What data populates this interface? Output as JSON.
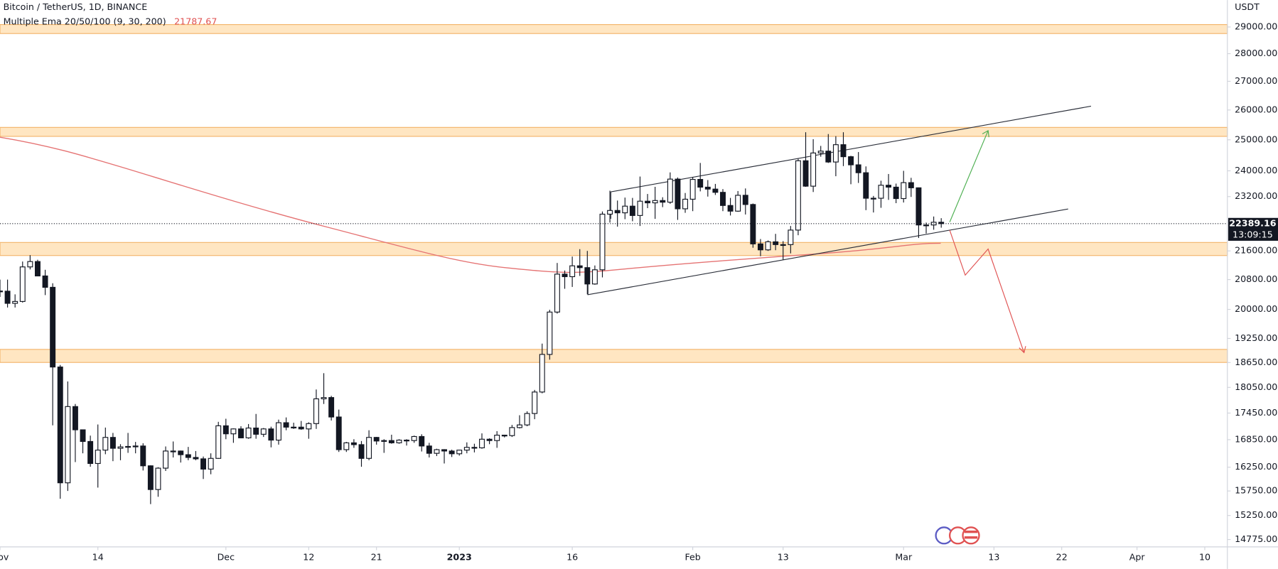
{
  "chart_data": {
    "type": "candlestick",
    "title": "Bitcoin / TetherUS, 1D, BINANCE",
    "indicator": {
      "name": "Multiple Ema 20/50/100 (9, 30, 200)",
      "value": 21787.67,
      "color": "#e05252"
    },
    "y_axis_unit": "USDT",
    "countdown": "13:09:15",
    "log_scale": true,
    "grid": false,
    "up_color": "#ffffff",
    "down_color": "#131722",
    "xlim": [
      "2022-11-01",
      "2023-04-13"
    ],
    "ylim": [
      14633,
      30045
    ],
    "xticks": [
      {
        "value": "2022-11-01",
        "label": "Nov"
      },
      {
        "value": "2022-11-14",
        "label": "14"
      },
      {
        "value": "2022-12-01",
        "label": "Dec"
      },
      {
        "value": "2022-12-12",
        "label": "12"
      },
      {
        "value": "2022-12-21",
        "label": "21"
      },
      {
        "value": "2023-01-01",
        "label": "2023"
      },
      {
        "value": "2023-01-16",
        "label": "16"
      },
      {
        "value": "2023-02-01",
        "label": "Feb"
      },
      {
        "value": "2023-02-13",
        "label": "13"
      },
      {
        "value": "2023-03-01",
        "label": "Mar"
      },
      {
        "value": "2023-03-13",
        "label": "13"
      },
      {
        "value": "2023-03-22",
        "label": "22"
      },
      {
        "value": "2023-04-01",
        "label": "Apr"
      },
      {
        "value": "2023-04-10",
        "label": "10"
      }
    ],
    "yticks": [
      {
        "value": 29000,
        "label": "29000.00"
      },
      {
        "value": 28000,
        "label": "28000.00"
      },
      {
        "value": 27000,
        "label": "27000.00"
      },
      {
        "value": 26000,
        "label": "26000.00"
      },
      {
        "value": 25000,
        "label": "25000.00"
      },
      {
        "value": 24000,
        "label": "24000.00"
      },
      {
        "value": 23200,
        "label": "23200.00"
      },
      {
        "value": 21600,
        "label": "21600.00"
      },
      {
        "value": 20800,
        "label": "20800.00"
      },
      {
        "value": 20000,
        "label": "20000.00"
      },
      {
        "value": 19250,
        "label": "19250.00"
      },
      {
        "value": 18650,
        "label": "18650.00"
      },
      {
        "value": 18050,
        "label": "18050.00"
      },
      {
        "value": 17450,
        "label": "17450.00"
      },
      {
        "value": 16850,
        "label": "16850.00"
      },
      {
        "value": 16250,
        "label": "16250.00"
      },
      {
        "value": 15750,
        "label": "15750.00"
      },
      {
        "value": 15250,
        "label": "15250.00"
      },
      {
        "value": 14775,
        "label": "14775.00"
      }
    ],
    "x": [
      "2022-11-01",
      "2022-11-02",
      "2022-11-03",
      "2022-11-04",
      "2022-11-05",
      "2022-11-06",
      "2022-11-07",
      "2022-11-08",
      "2022-11-09",
      "2022-11-10",
      "2022-11-11",
      "2022-11-12",
      "2022-11-13",
      "2022-11-14",
      "2022-11-15",
      "2022-11-16",
      "2022-11-17",
      "2022-11-18",
      "2022-11-19",
      "2022-11-20",
      "2022-11-21",
      "2022-11-22",
      "2022-11-23",
      "2022-11-24",
      "2022-11-25",
      "2022-11-26",
      "2022-11-27",
      "2022-11-28",
      "2022-11-29",
      "2022-11-30",
      "2022-12-01",
      "2022-12-02",
      "2022-12-03",
      "2022-12-04",
      "2022-12-05",
      "2022-12-06",
      "2022-12-07",
      "2022-12-08",
      "2022-12-09",
      "2022-12-10",
      "2022-12-11",
      "2022-12-12",
      "2022-12-13",
      "2022-12-14",
      "2022-12-15",
      "2022-12-16",
      "2022-12-17",
      "2022-12-18",
      "2022-12-19",
      "2022-12-20",
      "2022-12-21",
      "2022-12-22",
      "2022-12-23",
      "2022-12-24",
      "2022-12-25",
      "2022-12-26",
      "2022-12-27",
      "2022-12-28",
      "2022-12-29",
      "2022-12-30",
      "2022-12-31",
      "2023-01-01",
      "2023-01-02",
      "2023-01-03",
      "2023-01-04",
      "2023-01-05",
      "2023-01-06",
      "2023-01-07",
      "2023-01-08",
      "2023-01-09",
      "2023-01-10",
      "2023-01-11",
      "2023-01-12",
      "2023-01-13",
      "2023-01-14",
      "2023-01-15",
      "2023-01-16",
      "2023-01-17",
      "2023-01-18",
      "2023-01-19",
      "2023-01-20",
      "2023-01-21",
      "2023-01-22",
      "2023-01-23",
      "2023-01-24",
      "2023-01-25",
      "2023-01-26",
      "2023-01-27",
      "2023-01-28",
      "2023-01-29",
      "2023-01-30",
      "2023-01-31",
      "2023-02-01",
      "2023-02-02",
      "2023-02-03",
      "2023-02-04",
      "2023-02-05",
      "2023-02-06",
      "2023-02-07",
      "2023-02-08",
      "2023-02-09",
      "2023-02-10",
      "2023-02-11",
      "2023-02-12",
      "2023-02-13",
      "2023-02-14",
      "2023-02-15",
      "2023-02-16",
      "2023-02-17",
      "2023-02-18",
      "2023-02-19",
      "2023-02-20",
      "2023-02-21",
      "2023-02-22",
      "2023-02-23",
      "2023-02-24",
      "2023-02-25",
      "2023-02-26",
      "2023-02-27",
      "2023-02-28",
      "2023-03-01",
      "2023-03-02",
      "2023-03-03",
      "2023-03-04",
      "2023-03-05",
      "2023-03-06"
    ],
    "open": [
      20490,
      20485,
      20160,
      20210,
      21150,
      21300,
      20900,
      20590,
      18540,
      15920,
      17600,
      17070,
      16810,
      16330,
      16620,
      16900,
      16660,
      16690,
      16700,
      16710,
      16280,
      15780,
      16230,
      16600,
      16600,
      16520,
      16460,
      16430,
      16210,
      16440,
      17160,
      16980,
      17090,
      16890,
      17110,
      16970,
      17090,
      16840,
      17230,
      17130,
      17130,
      17090,
      17210,
      17780,
      17810,
      17360,
      16630,
      16780,
      16740,
      16440,
      16900,
      16820,
      16830,
      16780,
      16840,
      16830,
      16920,
      16710,
      16550,
      16630,
      16600,
      16540,
      16620,
      16680,
      16670,
      16860,
      16830,
      16950,
      16940,
      17120,
      17180,
      17440,
      17940,
      18850,
      19930,
      20950,
      20880,
      21180,
      21130,
      20680,
      21070,
      22670,
      22780,
      22710,
      22910,
      22630,
      23060,
      23010,
      23080,
      23030,
      23740,
      22830,
      23120,
      23730,
      23490,
      23430,
      23330,
      22930,
      22760,
      23240,
      22960,
      21800,
      21630,
      21860,
      21780,
      21780,
      22200,
      24320,
      23520,
      24570,
      24630,
      24280,
      24840,
      24450,
      24190,
      23940,
      23150,
      23150,
      23550,
      23490,
      23140,
      23630,
      23470,
      22350,
      22350,
      22430
    ],
    "high": [
      20800,
      20800,
      20400,
      21300,
      21480,
      21350,
      21070,
      20700,
      18590,
      18190,
      17660,
      17070,
      16940,
      17190,
      17120,
      17000,
      16750,
      17000,
      16800,
      16770,
      16290,
      16250,
      16700,
      16810,
      16610,
      16690,
      16600,
      16480,
      16550,
      17250,
      17320,
      17100,
      17150,
      17200,
      17430,
      17110,
      17140,
      17300,
      17350,
      17230,
      17270,
      17240,
      18000,
      18390,
      17850,
      17530,
      16800,
      16860,
      16820,
      17060,
      16910,
      16860,
      16960,
      16860,
      16860,
      16940,
      16970,
      16780,
      16650,
      16640,
      16630,
      16630,
      16790,
      16760,
      16990,
      16880,
      17040,
      16960,
      17180,
      17400,
      17490,
      17990,
      19120,
      19990,
      21260,
      21050,
      21440,
      21650,
      21600,
      21190,
      22750,
      23380,
      23080,
      23170,
      23160,
      23820,
      23280,
      23500,
      23180,
      23950,
      23790,
      23310,
      23810,
      24250,
      23710,
      23590,
      23430,
      23160,
      23370,
      23450,
      22990,
      21940,
      21900,
      22090,
      21880,
      22320,
      24380,
      25250,
      25020,
      24800,
      25190,
      25120,
      25250,
      24480,
      24600,
      24140,
      23220,
      23690,
      23900,
      23600,
      24000,
      23780,
      23480,
      22420,
      22600,
      22550
    ],
    "low": [
      20330,
      20050,
      20050,
      20180,
      21080,
      20900,
      20380,
      17170,
      15590,
      15750,
      16360,
      16550,
      16260,
      15820,
      16530,
      16380,
      16400,
      16560,
      16550,
      16180,
      15480,
      15630,
      16170,
      16460,
      16350,
      16400,
      16400,
      16000,
      16100,
      16430,
      16860,
      16780,
      16880,
      16870,
      16870,
      16910,
      16680,
      16740,
      17060,
      17090,
      17070,
      16870,
      17090,
      17660,
      17280,
      16580,
      16580,
      16670,
      16260,
      16400,
      16740,
      16560,
      16760,
      16760,
      16720,
      16780,
      16590,
      16460,
      16490,
      16330,
      16470,
      16500,
      16550,
      16570,
      16650,
      16750,
      16670,
      16900,
      16910,
      17100,
      17150,
      17310,
      17910,
      18720,
      19890,
      20550,
      20600,
      20900,
      20400,
      20660,
      20860,
      22420,
      22300,
      22520,
      22460,
      22320,
      22850,
      22530,
      22880,
      22980,
      22500,
      22710,
      22760,
      23360,
      23200,
      23250,
      22760,
      22630,
      22740,
      22660,
      21690,
      21450,
      21600,
      21620,
      21350,
      21530,
      22050,
      23500,
      23340,
      24450,
      24250,
      23830,
      24150,
      23580,
      23620,
      22790,
      22720,
      22860,
      23100,
      23000,
      23020,
      23190,
      21970,
      22100,
      22210,
      22270
    ],
    "close": [
      20485,
      20160,
      20210,
      21150,
      21300,
      20900,
      20590,
      18540,
      15920,
      17600,
      17070,
      16810,
      16330,
      16620,
      16900,
      16660,
      16690,
      16700,
      16710,
      16280,
      15780,
      16230,
      16600,
      16600,
      16520,
      16460,
      16430,
      16210,
      16440,
      17160,
      16980,
      17090,
      16890,
      17110,
      16970,
      17090,
      16840,
      17230,
      17130,
      17130,
      17090,
      17210,
      17780,
      17810,
      17360,
      16630,
      16780,
      16740,
      16440,
      16900,
      16820,
      16830,
      16780,
      16840,
      16830,
      16920,
      16710,
      16550,
      16630,
      16600,
      16540,
      16620,
      16680,
      16670,
      16860,
      16830,
      16950,
      16940,
      17120,
      17180,
      17440,
      17940,
      18850,
      19930,
      20950,
      20880,
      21180,
      21130,
      20680,
      21070,
      22670,
      22780,
      22710,
      22910,
      22630,
      23060,
      23010,
      23080,
      23030,
      23740,
      22830,
      23120,
      23730,
      23490,
      23430,
      23330,
      22930,
      22760,
      23240,
      22960,
      21800,
      21630,
      21860,
      21780,
      21780,
      22200,
      24320,
      23520,
      24570,
      24630,
      24280,
      24840,
      24450,
      24190,
      23940,
      23150,
      23150,
      23550,
      23490,
      23140,
      23630,
      23470,
      22350,
      22350,
      22430,
      22389.16
    ]
  }
}
